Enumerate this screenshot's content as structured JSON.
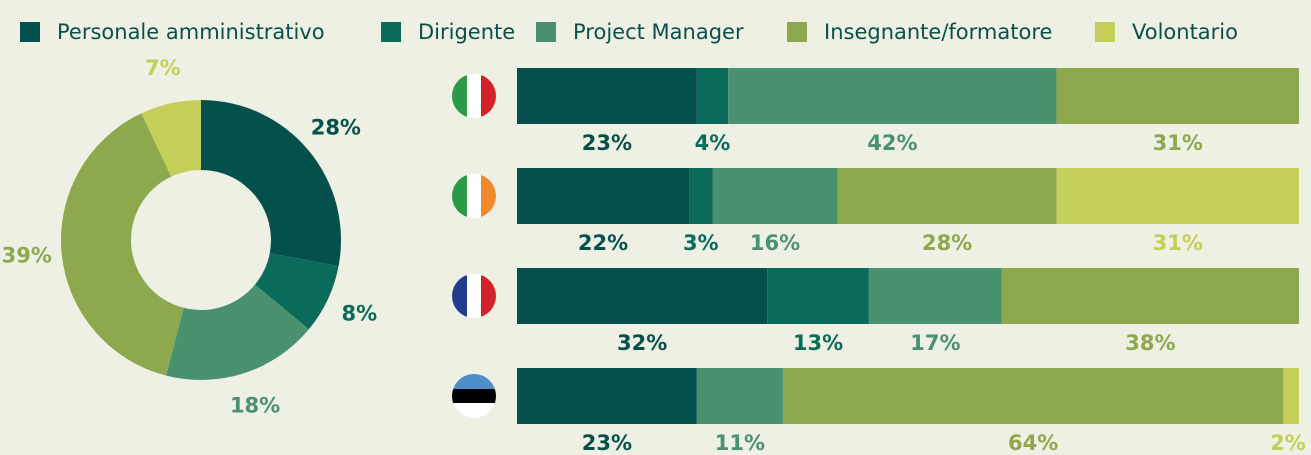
{
  "chart_data": [
    {
      "type": "pie",
      "donut": true,
      "values": [
        28,
        8,
        18,
        39,
        7
      ],
      "value_labels": [
        "28%",
        "8%",
        "18%",
        "39%",
        "7%"
      ],
      "colors": [
        "#04514b",
        "#0b6b5a",
        "#4a9170",
        "#8ea84e",
        "#c4cf5a"
      ]
    },
    {
      "type": "bar",
      "orientation": "horizontal",
      "stacked": true,
      "categories": [
        null,
        null,
        null,
        null
      ],
      "xlim": [
        0,
        100
      ],
      "series": [
        {
          "name": "Personale amministrativo",
          "color": "#04514b",
          "values": [
            23,
            22,
            32,
            23
          ],
          "value_labels": [
            "23%",
            "22%",
            "32%",
            "23%"
          ]
        },
        {
          "name": "Dirigente",
          "color": "#0b6b5a",
          "values": [
            4,
            3,
            13,
            null
          ],
          "value_labels": [
            "4%",
            "3%",
            "13%",
            null
          ]
        },
        {
          "name": "Project Manager",
          "color": "#4a9170",
          "values": [
            42,
            16,
            17,
            11
          ],
          "value_labels": [
            "42%",
            "16%",
            "17%",
            "11%"
          ]
        },
        {
          "name": "Insegnante/formatore",
          "color": "#8ea84e",
          "values": [
            31,
            28,
            38,
            64
          ],
          "value_labels": [
            "31%",
            "28%",
            "38%",
            "64%"
          ]
        },
        {
          "name": "Volontario",
          "color": "#c4cf5a",
          "values": [
            null,
            31,
            null,
            2
          ],
          "value_labels": [
            null,
            "31%",
            null,
            "2%"
          ]
        }
      ]
    }
  ]
}
